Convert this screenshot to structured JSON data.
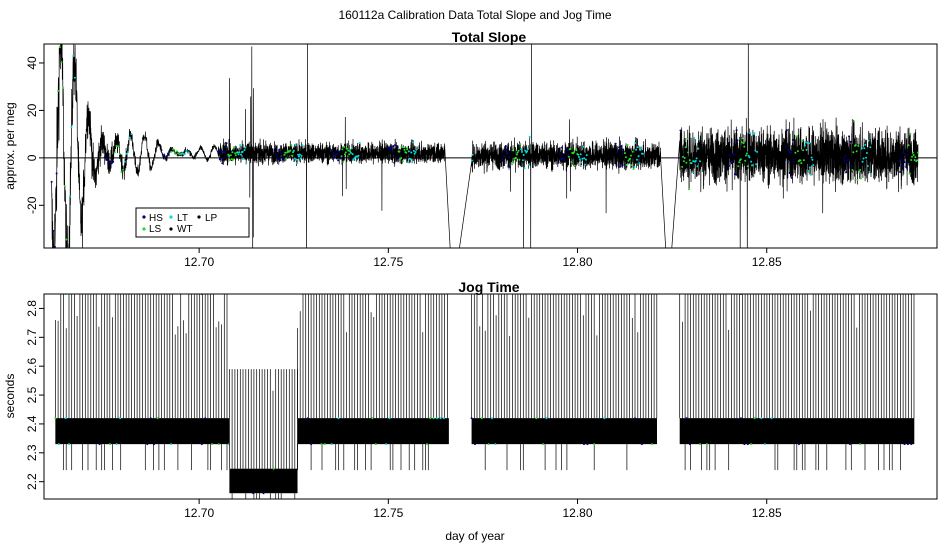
{
  "figure_title": "160112a   Calibration Data Total Slope and Jog Time",
  "legend": [
    {
      "label": "HS",
      "color": "#000080"
    },
    {
      "label": "LS",
      "color": "#22dd22"
    },
    {
      "label": "LT",
      "color": "#00dddd"
    },
    {
      "label": "WT",
      "color": "#000000"
    },
    {
      "label": "LP",
      "color": "#000000"
    }
  ],
  "chart_data": [
    {
      "type": "line",
      "title": "Total Slope",
      "xlabel": "",
      "ylabel": "approx. per meg",
      "xlim": [
        12.659,
        12.895
      ],
      "ylim": [
        -38,
        48
      ],
      "x_ticks": [
        12.7,
        12.75,
        12.8,
        12.85
      ],
      "x_tick_labels": [
        "12.70",
        "12.75",
        "12.80",
        "12.85"
      ],
      "y_ticks": [
        -20,
        0,
        20,
        40
      ],
      "y_tick_labels": [
        "-20",
        "0",
        "20",
        "40"
      ],
      "reference_line_y": 0,
      "segments": [
        {
          "x_start": 12.661,
          "x_end": 12.705,
          "description": "large early oscillations decaying to near zero"
        },
        {
          "x_start": 12.705,
          "x_end": 12.765,
          "center": 2,
          "noise": 3
        },
        {
          "x_start": 12.772,
          "x_end": 12.822,
          "center": 1,
          "noise": 4
        },
        {
          "x_start": 12.827,
          "x_end": 12.89,
          "center": 1,
          "noise": 8
        }
      ],
      "series": [
        {
          "name": "HS",
          "color": "#000080"
        },
        {
          "name": "LS",
          "color": "#22dd22"
        },
        {
          "name": "LT",
          "color": "#00dddd"
        },
        {
          "name": "WT",
          "color": "#000000"
        },
        {
          "name": "LP",
          "color": "#000000"
        }
      ],
      "legend_position": "bottom-left"
    },
    {
      "type": "line",
      "title": "Jog Time",
      "xlabel": "day of year",
      "ylabel": "seconds",
      "xlim": [
        12.659,
        12.895
      ],
      "ylim": [
        2.14,
        2.85
      ],
      "x_ticks": [
        12.7,
        12.75,
        12.8,
        12.85
      ],
      "x_tick_labels": [
        "12.70",
        "12.75",
        "12.80",
        "12.85"
      ],
      "y_ticks": [
        2.2,
        2.3,
        2.4,
        2.5,
        2.6,
        2.7,
        2.8
      ],
      "y_tick_labels": [
        "2.2",
        "2.3",
        "2.4",
        "2.5",
        "2.6",
        "2.7",
        "2.8"
      ],
      "segments": [
        {
          "x_start": 12.662,
          "x_end": 12.708,
          "low": 2.33,
          "high": 2.42,
          "spike_top": 2.85
        },
        {
          "x_start": 12.708,
          "x_end": 12.726,
          "low": 2.16,
          "high": 2.245,
          "spike_top": 2.59
        },
        {
          "x_start": 12.726,
          "x_end": 12.766,
          "low": 2.33,
          "high": 2.42,
          "spike_top": 2.85
        },
        {
          "x_start": 12.772,
          "x_end": 12.821,
          "low": 2.33,
          "high": 2.42,
          "spike_top": 2.85
        },
        {
          "x_start": 12.827,
          "x_end": 12.889,
          "low": 2.33,
          "high": 2.42,
          "spike_top": 2.85
        }
      ],
      "series": [
        {
          "name": "HS",
          "color": "#000080"
        },
        {
          "name": "LS",
          "color": "#22dd22"
        },
        {
          "name": "LT",
          "color": "#00dddd"
        },
        {
          "name": "WT",
          "color": "#000000"
        },
        {
          "name": "LP",
          "color": "#000000"
        }
      ]
    }
  ]
}
